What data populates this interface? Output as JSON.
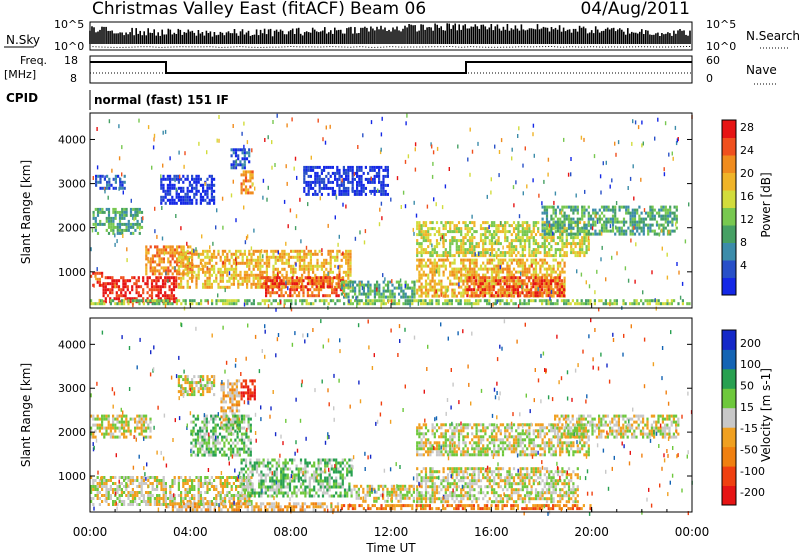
{
  "header": {
    "title": "Christmas Valley East (fitACF)",
    "beam": "Beam 06",
    "date": "04/Aug/2011"
  },
  "noise_panel": {
    "left_label": "N.Sky",
    "right_label": "N.Search",
    "left_ticks": [
      "10^5",
      "10^0"
    ],
    "right_ticks": [
      "10^5",
      "10^0"
    ]
  },
  "freq_panel": {
    "left_label_1": "Freq.",
    "left_label_2": "[MHz]",
    "left_ticks": [
      "18",
      "8"
    ],
    "right_label": "Nave",
    "right_ticks": [
      "60",
      "0"
    ]
  },
  "cpid": {
    "label": "CPID",
    "value": "normal (fast) 151 IF"
  },
  "chart_data": [
    {
      "type": "heatmap",
      "name": "power",
      "ylabel": "Slant Range [km]",
      "ylim": [
        180,
        4600
      ],
      "yticks": [
        1000,
        2000,
        3000,
        4000
      ],
      "xlim": [
        0,
        24
      ],
      "colorbar": {
        "label": "Power [dB]",
        "ticks": [
          "4",
          "8",
          "12",
          "16",
          "20",
          "24",
          "28"
        ],
        "colors": [
          "#1428e6",
          "#2850c8",
          "#3c8caa",
          "#46a064",
          "#78c850",
          "#d2dc3c",
          "#f0b428",
          "#f08c1e",
          "#f0501e",
          "#e61414"
        ]
      },
      "regions": [
        {
          "t": [
            0.0,
            0.6
          ],
          "r": [
            600,
            1000
          ],
          "level": 8
        },
        {
          "t": [
            0.5,
            3.5
          ],
          "r": [
            280,
            900
          ],
          "level": 9
        },
        {
          "t": [
            0.1,
            2.2
          ],
          "r": [
            1800,
            2450
          ],
          "level": 3
        },
        {
          "t": [
            2.2,
            4.2
          ],
          "r": [
            900,
            1600
          ],
          "level": 7
        },
        {
          "t": [
            3.5,
            10.5
          ],
          "r": [
            600,
            1500
          ],
          "level": 6
        },
        {
          "t": [
            6.8,
            10.2
          ],
          "r": [
            380,
            900
          ],
          "level": 8
        },
        {
          "t": [
            10.0,
            13.0
          ],
          "r": [
            350,
            800
          ],
          "level": 3
        },
        {
          "t": [
            13.0,
            19.0
          ],
          "r": [
            400,
            1300
          ],
          "level": 6
        },
        {
          "t": [
            15.0,
            19.0
          ],
          "r": [
            400,
            900
          ],
          "level": 8
        },
        {
          "t": [
            13.0,
            20.0
          ],
          "r": [
            1300,
            2150
          ],
          "level": 5
        },
        {
          "t": [
            18.0,
            23.5
          ],
          "r": [
            1800,
            2500
          ],
          "level": 3
        },
        {
          "t": [
            0.2,
            1.5
          ],
          "r": [
            2800,
            3200
          ],
          "level": 1
        },
        {
          "t": [
            2.8,
            5.0
          ],
          "r": [
            2500,
            3200
          ],
          "level": 0
        },
        {
          "t": [
            5.6,
            6.4
          ],
          "r": [
            3300,
            3800
          ],
          "level": 1
        },
        {
          "t": [
            8.5,
            12.0
          ],
          "r": [
            2700,
            3400
          ],
          "level": 0
        },
        {
          "t": [
            6.0,
            6.6
          ],
          "r": [
            2700,
            3300
          ],
          "level": 7
        },
        {
          "t": [
            0.0,
            24.0
          ],
          "r": [
            180,
            380
          ],
          "level": 4
        }
      ]
    },
    {
      "type": "heatmap",
      "name": "velocity",
      "ylabel": "Slant Range [km]",
      "ylim": [
        180,
        4600
      ],
      "yticks": [
        1000,
        2000,
        3000,
        4000
      ],
      "xlim": [
        0,
        24
      ],
      "xticks": [
        "00:00",
        "04:00",
        "08:00",
        "12:00",
        "16:00",
        "20:00",
        "00:00"
      ],
      "xlabel": "Time UT",
      "colorbar": {
        "label": "Velocity [m s-1]",
        "ticks": [
          "200",
          "100",
          "50",
          "15",
          "-15",
          "-50",
          "-100",
          "-200"
        ],
        "colors": [
          "#1428c8",
          "#1464b4",
          "#28a050",
          "#6ec83c",
          "#c8c8c8",
          "#f0a020",
          "#f08010",
          "#f04010",
          "#e61414"
        ]
      },
      "regions": [
        {
          "t": [
            0.0,
            3.5
          ],
          "r": [
            300,
            1000
          ],
          "level": 4
        },
        {
          "t": [
            3.5,
            6.5
          ],
          "r": [
            300,
            1000
          ],
          "level": 4
        },
        {
          "t": [
            6.0,
            10.5
          ],
          "r": [
            500,
            1400
          ],
          "level": 3
        },
        {
          "t": [
            10.5,
            13.0
          ],
          "r": [
            350,
            800
          ],
          "level": 4
        },
        {
          "t": [
            13.0,
            19.5
          ],
          "r": [
            350,
            1200
          ],
          "level": 4
        },
        {
          "t": [
            3.0,
            10.0
          ],
          "r": [
            180,
            400
          ],
          "level": 5
        },
        {
          "t": [
            10.0,
            20.0
          ],
          "r": [
            180,
            360
          ],
          "level": 6
        },
        {
          "t": [
            0.0,
            2.5
          ],
          "r": [
            1800,
            2400
          ],
          "level": 4
        },
        {
          "t": [
            13.0,
            20.0
          ],
          "r": [
            1400,
            2200
          ],
          "level": 4
        },
        {
          "t": [
            18.5,
            23.5
          ],
          "r": [
            1800,
            2400
          ],
          "level": 4
        },
        {
          "t": [
            6.0,
            6.7
          ],
          "r": [
            2700,
            3200
          ],
          "level": 8
        },
        {
          "t": [
            5.2,
            6.0
          ],
          "r": [
            2000,
            3200
          ],
          "level": 5
        },
        {
          "t": [
            3.5,
            5.0
          ],
          "r": [
            2800,
            3300
          ],
          "level": 4
        },
        {
          "t": [
            4.0,
            6.5
          ],
          "r": [
            1400,
            2400
          ],
          "level": 3
        }
      ]
    }
  ],
  "colors": {
    "frame": "#000000",
    "background": "#ffffff"
  }
}
